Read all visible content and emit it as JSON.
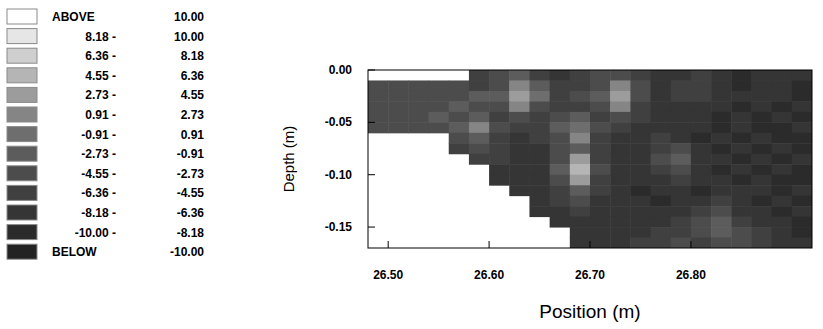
{
  "chart_data": {
    "type": "heatmap",
    "xlabel": "Position (m)",
    "ylabel": "Depth (m)",
    "xlim": [
      26.48,
      26.92
    ],
    "ylim": [
      -0.17,
      0
    ],
    "xticks": [
      {
        "value": 26.5,
        "label": "26.50"
      },
      {
        "value": 26.6,
        "label": "26.60"
      },
      {
        "value": 26.7,
        "label": "26.70"
      },
      {
        "value": 26.8,
        "label": "26.80"
      }
    ],
    "yticks": [
      {
        "value": 0,
        "label": "0.00"
      },
      {
        "value": -0.05,
        "label": "-0.05"
      },
      {
        "value": -0.1,
        "label": "-0.10"
      },
      {
        "value": -0.15,
        "label": "-0.15"
      }
    ],
    "x_edges": [
      26.48,
      26.5,
      26.52,
      26.54,
      26.56,
      26.58,
      26.6,
      26.62,
      26.64,
      26.66,
      26.68,
      26.7,
      26.72,
      26.74,
      26.76,
      26.78,
      26.8,
      26.82,
      26.84,
      26.86,
      26.88,
      26.9,
      26.92
    ],
    "y_edges": [
      0,
      -0.01,
      -0.02,
      -0.03,
      -0.04,
      -0.05,
      -0.06,
      -0.07,
      -0.08,
      -0.09,
      -0.1,
      -0.11,
      -0.12,
      -0.13,
      -0.14,
      -0.15,
      -0.16,
      -0.17
    ],
    "cells": [
      [
        null,
        null,
        null,
        null,
        null,
        -5,
        -4,
        -2,
        -5,
        -7,
        -6,
        -4,
        -3,
        -6,
        -8,
        -7,
        -6,
        -8,
        -9,
        -8,
        -7,
        -8
      ],
      [
        -3,
        -3,
        -4,
        -3,
        -4,
        -5,
        -3,
        1,
        -2,
        -6,
        -5,
        -3,
        2,
        -4,
        -7,
        -6,
        -5,
        -8,
        -9,
        -7,
        -8,
        -9
      ],
      [
        -4,
        -3,
        -3,
        -4,
        -3,
        -2,
        -2,
        4,
        0,
        -5,
        -4,
        -2,
        4,
        -3,
        -7,
        -6,
        -6,
        -7,
        -8,
        -8,
        -7,
        -9
      ],
      [
        -3,
        -4,
        -3,
        -3,
        -2,
        -3,
        -4,
        2,
        -3,
        -6,
        -5,
        -4,
        1,
        -5,
        -8,
        -7,
        -7,
        -8,
        -9,
        -8,
        -9,
        -8
      ],
      [
        -4,
        -3,
        -4,
        -2,
        -3,
        -1,
        -5,
        -3,
        -6,
        -4,
        -2,
        -5,
        -4,
        -6,
        -8,
        -8,
        -7,
        -9,
        -8,
        -9,
        -8,
        -9
      ],
      [
        -3,
        -4,
        -3,
        -4,
        -2,
        1,
        -4,
        -6,
        -5,
        -2,
        0,
        -4,
        -6,
        -7,
        -7,
        -8,
        -8,
        -9,
        -8,
        -9,
        -9,
        -8
      ],
      [
        null,
        null,
        null,
        null,
        -4,
        -2,
        -5,
        -7,
        -6,
        -3,
        1,
        -5,
        -7,
        -8,
        -6,
        -7,
        -9,
        -8,
        -9,
        -8,
        -9,
        -9
      ],
      [
        null,
        null,
        null,
        null,
        -5,
        -4,
        -6,
        -7,
        -7,
        -4,
        -1,
        -6,
        -8,
        -8,
        -5,
        -4,
        -8,
        -9,
        -8,
        -9,
        -8,
        -9
      ],
      [
        null,
        null,
        null,
        null,
        null,
        -5,
        -6,
        -8,
        -7,
        -3,
        3,
        -5,
        -8,
        -7,
        -4,
        -2,
        -7,
        -8,
        -9,
        -8,
        -9,
        -8
      ],
      [
        null,
        null,
        null,
        null,
        null,
        null,
        -7,
        -8,
        -7,
        -2,
        5,
        -4,
        -7,
        -8,
        -5,
        -3,
        -8,
        -9,
        -8,
        -9,
        -8,
        -9
      ],
      [
        null,
        null,
        null,
        null,
        null,
        null,
        -7,
        -8,
        -8,
        -3,
        4,
        -5,
        -8,
        -8,
        -7,
        -6,
        -8,
        -8,
        -9,
        -8,
        -9,
        -9
      ],
      [
        null,
        null,
        null,
        null,
        null,
        null,
        null,
        -8,
        -7,
        -5,
        -1,
        -6,
        -8,
        -9,
        -8,
        -8,
        -9,
        -8,
        -7,
        -8,
        -9,
        -8
      ],
      [
        null,
        null,
        null,
        null,
        null,
        null,
        null,
        null,
        -8,
        -6,
        -4,
        -7,
        -8,
        -8,
        -9,
        -8,
        -7,
        -6,
        -8,
        -9,
        -8,
        -9
      ],
      [
        null,
        null,
        null,
        null,
        null,
        null,
        null,
        null,
        -7,
        -7,
        -6,
        -8,
        -8,
        -7,
        -8,
        -7,
        -5,
        -4,
        -7,
        -8,
        -9,
        -8
      ],
      [
        null,
        null,
        null,
        null,
        null,
        null,
        null,
        null,
        null,
        -8,
        -7,
        -8,
        -7,
        -8,
        -7,
        -6,
        -3,
        -2,
        -5,
        -7,
        -8,
        -9
      ],
      [
        null,
        null,
        null,
        null,
        null,
        null,
        null,
        null,
        null,
        null,
        -8,
        -7,
        -8,
        -7,
        -6,
        -5,
        -4,
        -2,
        -3,
        -6,
        -8,
        -9
      ],
      [
        null,
        null,
        null,
        null,
        null,
        null,
        null,
        null,
        null,
        null,
        -7,
        -8,
        -7,
        -6,
        -5,
        -4,
        -5,
        -3,
        -4,
        -5,
        -7,
        -8
      ]
    ],
    "colorbar": {
      "bounds": [
        -10,
        -8.18,
        -6.36,
        -4.55,
        -2.73,
        -0.91,
        0.91,
        2.73,
        4.55,
        6.36,
        8.18,
        10
      ],
      "labels": [
        [
          "ABOVE",
          "10.00"
        ],
        [
          "8.18 -",
          "10.00"
        ],
        [
          "6.36 -",
          "8.18"
        ],
        [
          "4.55 -",
          "6.36"
        ],
        [
          "2.73 -",
          "4.55"
        ],
        [
          "0.91 -",
          "2.73"
        ],
        [
          "-0.91 -",
          "0.91"
        ],
        [
          "-2.73 -",
          "-0.91"
        ],
        [
          "-4.55 -",
          "-2.73"
        ],
        [
          "-6.36 -",
          "-4.55"
        ],
        [
          "-8.18 -",
          "-6.36"
        ],
        [
          "-10.00 -",
          "-8.18"
        ],
        [
          "BELOW",
          "-10.00"
        ]
      ],
      "colors": [
        "#ffffff",
        "#e6e6e6",
        "#cfcfcf",
        "#b5b5b5",
        "#9c9c9c",
        "#858585",
        "#6e6e6e",
        "#5c5c5c",
        "#4c4c4c",
        "#404040",
        "#353535",
        "#2b2b2b",
        "#222222"
      ]
    }
  }
}
